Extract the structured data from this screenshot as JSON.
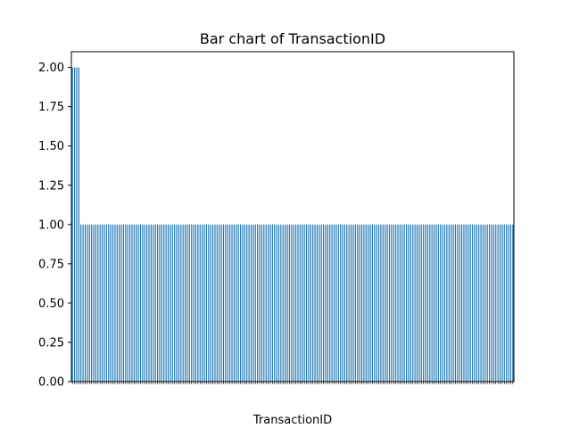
{
  "chart_data": {
    "type": "bar",
    "title": "Bar chart of TransactionID",
    "xlabel": "TransactionID",
    "ylabel": "",
    "ylim": [
      0,
      2.1
    ],
    "yticks": [
      "0.00",
      "0.25",
      "0.50",
      "0.75",
      "1.00",
      "1.25",
      "1.50",
      "1.75",
      "2.00"
    ],
    "grid": false,
    "bar_color": "#1f77b4",
    "bar_count": 208,
    "values_note_series": [
      {
        "count": 4,
        "value": 2
      },
      {
        "count": 204,
        "value": 1
      }
    ]
  }
}
